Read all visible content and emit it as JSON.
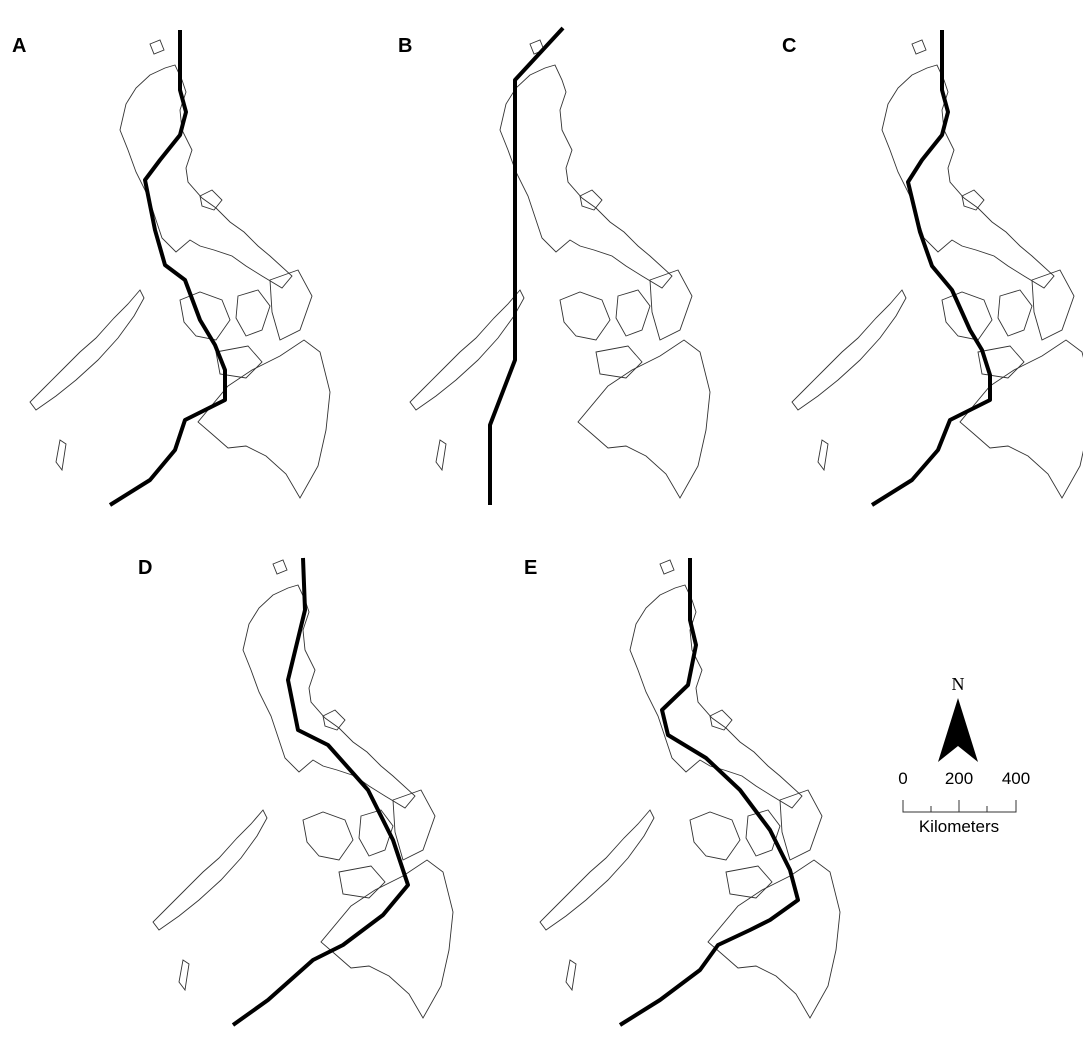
{
  "panels": [
    {
      "label": "A"
    },
    {
      "label": "B"
    },
    {
      "label": "C"
    },
    {
      "label": "D"
    },
    {
      "label": "E"
    }
  ],
  "north_arrow": {
    "label": "N"
  },
  "scale_bar": {
    "ticks": [
      "0",
      "200",
      "400"
    ],
    "unit": "Kilometers"
  }
}
